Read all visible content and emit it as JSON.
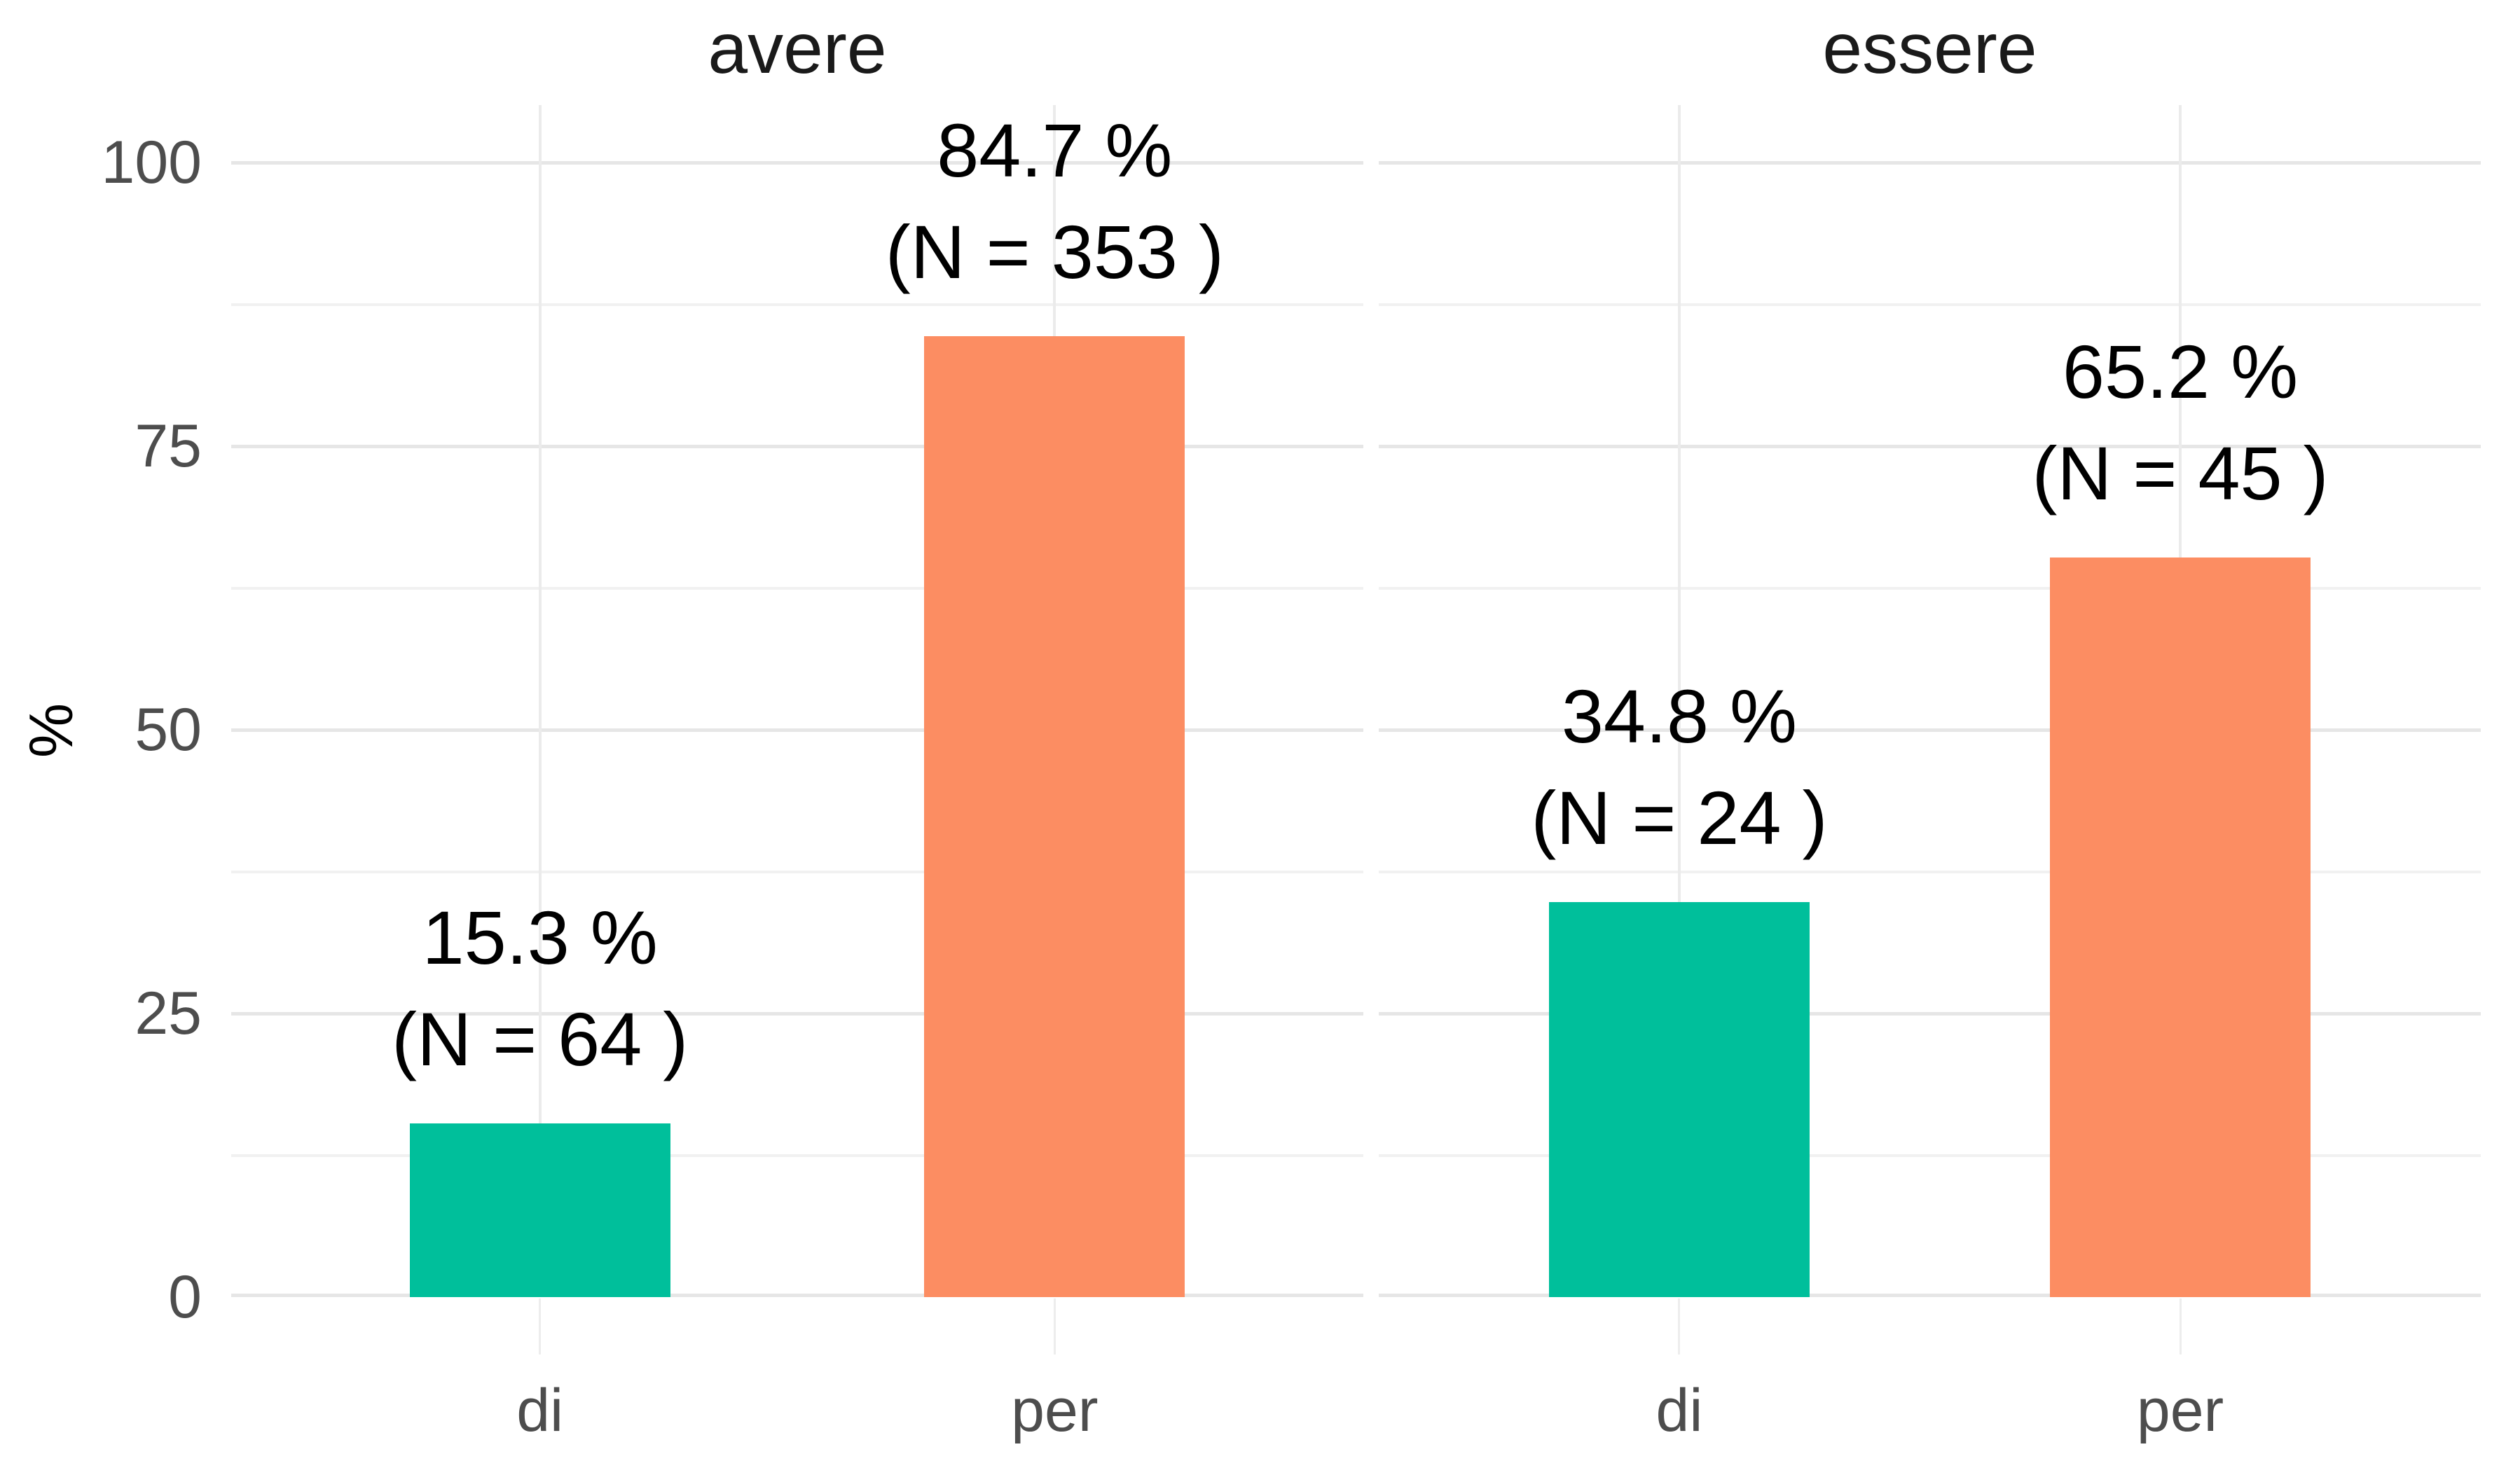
{
  "chart_data": {
    "type": "bar",
    "layout": "faceted-bar",
    "ylabel": "%",
    "ylim": [
      0,
      100
    ],
    "grid": "major+minor horizontal, major vertical at categories",
    "legend": "none",
    "yticks": [
      {
        "value": 100,
        "label": "100"
      },
      {
        "value": 75,
        "label": "75"
      },
      {
        "value": 50,
        "label": "50"
      },
      {
        "value": 25,
        "label": "25"
      },
      {
        "value": 0,
        "label": "0"
      }
    ],
    "categories": [
      "di",
      "per"
    ],
    "facets": [
      {
        "title": "avere",
        "bars": [
          {
            "category": "di",
            "value_pct": 15.3,
            "n": 64,
            "label_lines": [
              "15.3 %",
              "(N = 64 )"
            ]
          },
          {
            "category": "per",
            "value_pct": 84.7,
            "n": 353,
            "label_lines": [
              "84.7 %",
              "(N = 353 )"
            ]
          }
        ]
      },
      {
        "title": "essere",
        "bars": [
          {
            "category": "di",
            "value_pct": 34.8,
            "n": 24,
            "label_lines": [
              "34.8 %",
              "(N = 24 )"
            ]
          },
          {
            "category": "per",
            "value_pct": 65.2,
            "n": 45,
            "label_lines": [
              "65.2 %",
              "(N = 45 )"
            ]
          }
        ]
      }
    ],
    "colors": {
      "bar_di": "#00BF9B",
      "bar_per": "#FC8D62",
      "grid_major": "#E6E6E6",
      "grid_minor": "#F1F1F1",
      "grid_vertical": "#EBEBEB",
      "axis_tick": "#EDEDED",
      "axis_text": "#4D4D4D",
      "title_text": "#1A1A1A",
      "label_text": "#000000",
      "background": "#FFFFFF"
    }
  }
}
